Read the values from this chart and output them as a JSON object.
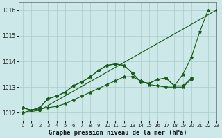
{
  "xlabel": "Graphe pression niveau de la mer (hPa)",
  "xlim": [
    -0.5,
    23
  ],
  "ylim": [
    1011.7,
    1016.3
  ],
  "yticks": [
    1012,
    1013,
    1014,
    1015,
    1016
  ],
  "xticks": [
    0,
    1,
    2,
    3,
    4,
    5,
    6,
    7,
    8,
    9,
    10,
    11,
    12,
    13,
    14,
    15,
    16,
    17,
    18,
    19,
    20,
    21,
    22,
    23
  ],
  "bg_color": "#cce8e8",
  "grid_color": "#aacccc",
  "line_color": "#1a5c1a",
  "lines": [
    [
      1012.0,
      null,
      1012.1,
      null,
      null,
      null,
      null,
      null,
      null,
      null,
      null,
      null,
      null,
      null,
      null,
      null,
      null,
      null,
      null,
      null,
      null,
      null,
      null,
      1016.0
    ],
    [
      1012.2,
      1012.1,
      1012.2,
      1012.55,
      1012.65,
      1012.8,
      1013.05,
      1013.2,
      1013.4,
      1013.65,
      1013.85,
      1013.9,
      1013.85,
      1013.55,
      1013.2,
      1013.15,
      1013.3,
      1013.35,
      1013.05,
      1013.5,
      1014.15,
      1015.15,
      1016.0,
      null
    ],
    [
      1012.2,
      1012.1,
      1012.2,
      1012.55,
      1012.65,
      1012.8,
      1013.05,
      1013.2,
      1013.4,
      1013.65,
      1013.85,
      1013.9,
      1013.85,
      1013.55,
      1013.2,
      1013.15,
      1013.3,
      1013.35,
      1013.05,
      1013.05,
      1013.35,
      null,
      null,
      null
    ],
    [
      1012.0,
      1012.1,
      1012.15,
      1012.2,
      1012.25,
      1012.35,
      1012.5,
      1012.65,
      1012.8,
      1012.95,
      1013.1,
      1013.25,
      1013.4,
      1013.4,
      1013.25,
      1013.1,
      1013.05,
      1013.0,
      1013.0,
      1013.0,
      1013.3,
      null,
      null,
      null
    ]
  ]
}
